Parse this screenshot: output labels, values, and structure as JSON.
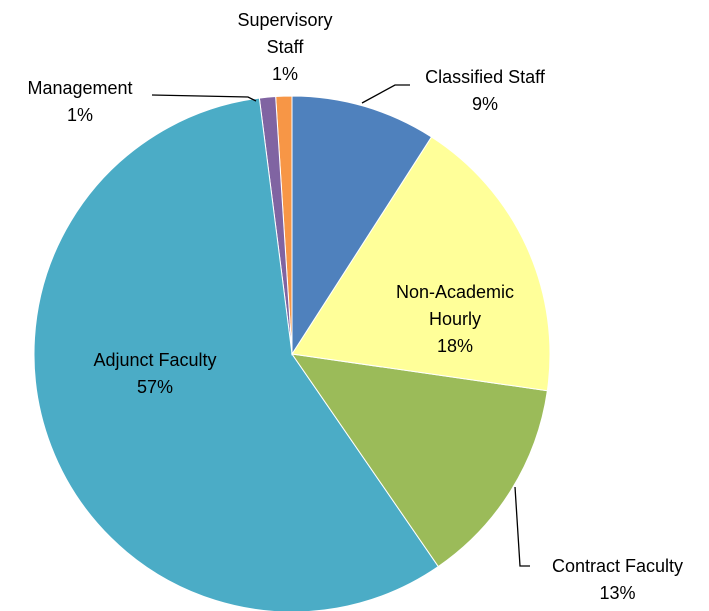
{
  "chart_data": {
    "type": "pie",
    "categories": [
      "Classified Staff",
      "Non-Academic Hourly",
      "Contract Faculty",
      "Adjunct Faculty",
      "Management",
      "Supervisory Staff"
    ],
    "values": [
      9,
      18,
      13,
      57,
      1,
      1
    ],
    "value_labels": [
      "9%",
      "18%",
      "13%",
      "57%",
      "1%",
      "1%"
    ],
    "colors": [
      "#4f81bd",
      "#ffff99",
      "#9bbb59",
      "#4bacc6",
      "#8064a2",
      "#f79646"
    ]
  }
}
